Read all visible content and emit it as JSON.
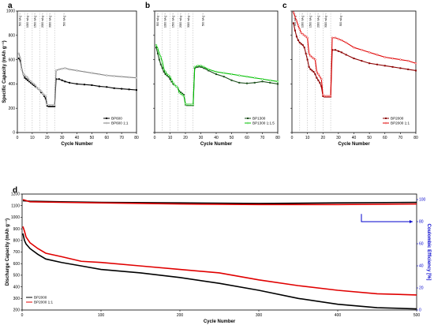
{
  "chart_data": [
    {
      "panel": "a",
      "type": "line",
      "xlabel": "Cycle Number",
      "ylabel": "Specific Capacity (mAh g⁻¹)",
      "xlim": [
        0,
        80
      ],
      "ylim": [
        0,
        1000
      ],
      "xticks": [
        0,
        10,
        20,
        30,
        40,
        50,
        60,
        70,
        80
      ],
      "yticks": [
        0,
        200,
        400,
        600,
        800,
        1000
      ],
      "rate_labels": [
        "500 mA g⁻¹",
        "1000 mA g⁻¹",
        "1500 mA g⁻¹",
        "2000 mA g⁻¹",
        "3000 mA g⁻¹",
        "500 mA g⁻¹"
      ],
      "rate_label_x": [
        2.5,
        7.5,
        12.5,
        17.5,
        22.5,
        32
      ],
      "rate_dividers": [
        5,
        10,
        15,
        20,
        25
      ],
      "legend": "bottom-right",
      "series": [
        {
          "name": "BP600",
          "color": "#000000",
          "x": [
            1,
            2,
            3,
            4,
            5,
            6,
            7,
            8,
            9,
            10,
            11,
            12,
            13,
            14,
            15,
            16,
            17,
            18,
            19,
            20,
            21,
            22,
            23,
            24,
            25,
            26,
            28,
            30,
            32,
            35,
            40,
            45,
            50,
            55,
            60,
            65,
            70,
            75,
            80
          ],
          "y": [
            610,
            590,
            520,
            480,
            450,
            440,
            430,
            420,
            410,
            400,
            390,
            380,
            370,
            360,
            350,
            330,
            320,
            300,
            280,
            220,
            215,
            215,
            215,
            215,
            215,
            440,
            440,
            430,
            420,
            410,
            400,
            395,
            390,
            380,
            375,
            365,
            360,
            355,
            350
          ]
        },
        {
          "name": "BP600 1:1",
          "color": "#7f7f7f",
          "x": [
            1,
            2,
            3,
            4,
            5,
            6,
            7,
            8,
            9,
            10,
            11,
            12,
            13,
            14,
            15,
            16,
            17,
            18,
            19,
            20,
            21,
            22,
            23,
            24,
            25,
            26,
            28,
            30,
            32,
            35,
            40,
            45,
            50,
            55,
            60,
            65,
            70,
            75,
            80
          ],
          "y": [
            650,
            610,
            520,
            480,
            470,
            460,
            450,
            430,
            420,
            410,
            400,
            390,
            370,
            360,
            350,
            340,
            320,
            310,
            300,
            230,
            225,
            225,
            225,
            225,
            225,
            510,
            520,
            525,
            530,
            520,
            510,
            500,
            490,
            480,
            470,
            465,
            460,
            455,
            450
          ]
        }
      ]
    },
    {
      "panel": "b",
      "type": "line",
      "xlabel": "Cycle Number",
      "xlim": [
        0,
        80
      ],
      "ylim": [
        0,
        1000
      ],
      "xticks": [
        0,
        10,
        20,
        30,
        40,
        50,
        60,
        70,
        80
      ],
      "rate_labels": [
        "500 mA g⁻¹",
        "1000 mA g⁻¹",
        "1500 mA g⁻¹",
        "2000 mA g⁻¹",
        "3000 mA g⁻¹",
        "500 mA g⁻¹"
      ],
      "rate_label_x": [
        2.5,
        7.5,
        12.5,
        17.5,
        22.5,
        32
      ],
      "rate_dividers": [
        5,
        10,
        15,
        20,
        25
      ],
      "legend": "bottom-right",
      "series": [
        {
          "name": "BP1300",
          "color": "#1a4d1a",
          "x": [
            1,
            2,
            3,
            4,
            5,
            6,
            7,
            8,
            9,
            10,
            11,
            12,
            13,
            14,
            15,
            16,
            17,
            18,
            19,
            20,
            21,
            22,
            23,
            24,
            25,
            26,
            28,
            30,
            32,
            35,
            40,
            45,
            50,
            55,
            60,
            65,
            70,
            75,
            80
          ],
          "y": [
            700,
            650,
            600,
            560,
            530,
            500,
            480,
            470,
            460,
            440,
            420,
            400,
            390,
            380,
            370,
            340,
            330,
            320,
            310,
            230,
            225,
            225,
            225,
            225,
            225,
            530,
            540,
            540,
            530,
            510,
            480,
            460,
            430,
            410,
            405,
            410,
            420,
            410,
            400
          ]
        },
        {
          "name": "BP1300 1:1.5",
          "color": "#00c000",
          "x": [
            1,
            2,
            3,
            4,
            5,
            6,
            7,
            8,
            9,
            10,
            11,
            12,
            13,
            14,
            15,
            16,
            17,
            18,
            19,
            20,
            21,
            22,
            23,
            24,
            25,
            26,
            28,
            30,
            32,
            35,
            40,
            45,
            50,
            55,
            60,
            65,
            70,
            75,
            80
          ],
          "y": [
            720,
            690,
            650,
            620,
            580,
            520,
            500,
            480,
            470,
            460,
            430,
            410,
            390,
            380,
            370,
            330,
            320,
            310,
            300,
            235,
            230,
            230,
            230,
            230,
            230,
            540,
            550,
            550,
            540,
            520,
            500,
            490,
            480,
            470,
            460,
            450,
            440,
            430,
            420
          ]
        }
      ]
    },
    {
      "panel": "c",
      "type": "line",
      "xlabel": "Cycle Number",
      "xlim": [
        0,
        80
      ],
      "ylim": [
        0,
        1000
      ],
      "xticks": [
        0,
        10,
        20,
        30,
        40,
        50,
        60,
        70,
        80
      ],
      "rate_labels": [
        "500 mA g⁻¹",
        "1000 mA g⁻¹",
        "1500 mA g⁻¹",
        "2000 mA g⁻¹",
        "3000 mA g⁻¹",
        "500 mA g⁻¹"
      ],
      "rate_label_x": [
        2.5,
        7.5,
        12.5,
        17.5,
        22.5,
        32
      ],
      "rate_dividers": [
        5,
        10,
        15,
        20,
        25
      ],
      "legend": "bottom-right",
      "series": [
        {
          "name": "BP2000",
          "color": "#8b0000",
          "x": [
            1,
            2,
            3,
            4,
            5,
            6,
            7,
            8,
            9,
            10,
            11,
            12,
            13,
            14,
            15,
            16,
            17,
            18,
            19,
            20,
            21,
            22,
            23,
            24,
            25,
            26,
            28,
            30,
            32,
            35,
            40,
            45,
            50,
            55,
            60,
            65,
            70,
            75,
            80
          ],
          "y": [
            900,
            840,
            790,
            760,
            740,
            730,
            720,
            700,
            650,
            600,
            540,
            520,
            510,
            500,
            480,
            450,
            430,
            410,
            380,
            300,
            295,
            295,
            295,
            295,
            295,
            680,
            680,
            670,
            660,
            640,
            610,
            590,
            570,
            560,
            550,
            540,
            530,
            520,
            510
          ]
        },
        {
          "name": "BP2000 1:1",
          "color": "#e00000",
          "x": [
            1,
            2,
            3,
            4,
            5,
            6,
            7,
            8,
            9,
            10,
            11,
            12,
            13,
            14,
            15,
            16,
            17,
            18,
            19,
            20,
            21,
            22,
            23,
            24,
            25,
            26,
            28,
            30,
            32,
            35,
            40,
            45,
            50,
            55,
            60,
            65,
            70,
            75,
            80
          ],
          "y": [
            990,
            950,
            920,
            880,
            850,
            820,
            810,
            800,
            790,
            780,
            650,
            630,
            620,
            610,
            600,
            500,
            480,
            460,
            440,
            310,
            300,
            300,
            300,
            300,
            300,
            780,
            780,
            770,
            760,
            740,
            700,
            680,
            660,
            640,
            620,
            610,
            600,
            590,
            570
          ]
        }
      ]
    },
    {
      "panel": "d",
      "type": "line",
      "xlabel": "Cycle Number",
      "ylabel": "Discharge Capacity (mAh g⁻¹)",
      "y2label": "Coulombic Efficiency [%]",
      "xlim": [
        0,
        500
      ],
      "ylim": [
        200,
        1200
      ],
      "y2lim": [
        0,
        105
      ],
      "xticks": [
        0,
        100,
        200,
        300,
        400,
        500
      ],
      "yticks": [
        200,
        300,
        400,
        500,
        600,
        700,
        800,
        900,
        1000,
        1100,
        1200
      ],
      "y2ticks": [
        0,
        20,
        40,
        60,
        80,
        100
      ],
      "legend": "bottom-left",
      "series": [
        {
          "name": "BP2000",
          "color": "#000000",
          "axis": "left",
          "x": [
            1,
            3,
            5,
            10,
            20,
            30,
            50,
            75,
            100,
            150,
            200,
            250,
            300,
            350,
            400,
            450,
            500
          ],
          "y": [
            860,
            800,
            770,
            730,
            680,
            640,
            610,
            580,
            550,
            520,
            480,
            430,
            370,
            300,
            250,
            220,
            210
          ]
        },
        {
          "name": "BP2000 1:1",
          "color": "#e00000",
          "axis": "left",
          "x": [
            1,
            3,
            5,
            10,
            20,
            30,
            50,
            75,
            100,
            150,
            200,
            250,
            300,
            350,
            400,
            450,
            500
          ],
          "y": [
            920,
            880,
            830,
            780,
            730,
            690,
            660,
            620,
            610,
            580,
            550,
            520,
            460,
            410,
            370,
            340,
            330
          ]
        },
        {
          "name": "BP2000",
          "color": "#000000",
          "axis": "right",
          "x": [
            1,
            10,
            50,
            100,
            200,
            300,
            400,
            500
          ],
          "y": [
            99,
            98.5,
            98,
            97.5,
            97,
            96.5,
            97,
            97.5
          ]
        },
        {
          "name": "BP2000 1:1",
          "color": "#e00000",
          "axis": "right",
          "x": [
            1,
            10,
            50,
            100,
            200,
            300,
            400,
            500
          ],
          "y": [
            100,
            98,
            97.5,
            97,
            96,
            95.5,
            95.5,
            96
          ]
        }
      ],
      "annotations": [
        {
          "type": "arrow",
          "from": [
            430,
            87
          ],
          "to": [
            495,
            80
          ],
          "color": "#0000cc"
        }
      ]
    }
  ]
}
